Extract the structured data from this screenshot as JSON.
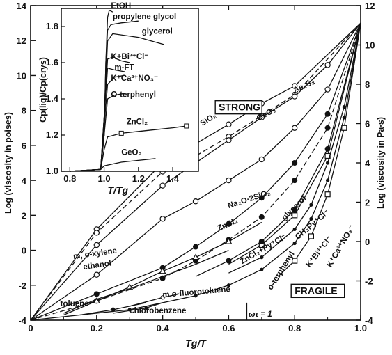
{
  "chart_data": [
    {
      "type": "line",
      "title": "",
      "xlabel": "Tg/T",
      "ylabel_left": "Log (viscosity in poises)",
      "ylabel_right": "Log (viscosity in Pa∙s)",
      "xlim": [
        0,
        1.0
      ],
      "ylim_left": [
        -4,
        14
      ],
      "ylim_right": [
        -4,
        12
      ],
      "x_ticks": [
        "0",
        "0.2",
        "0.4",
        "0.6",
        "0.8",
        "1.0"
      ],
      "y_ticks_left": [
        "-4",
        "-2",
        "0",
        "2",
        "4",
        "6",
        "8",
        "10",
        "12",
        "14"
      ],
      "y_ticks_right": [
        "-4",
        "-2",
        "0",
        "2",
        "4",
        "6",
        "8",
        "10",
        "12"
      ],
      "grid": false,
      "boxed_labels": [
        "STRONG",
        "FRAGILE"
      ],
      "annotations": {
        "omega_tau": "ωτ = 1"
      },
      "series": [
        {
          "name": "SiO2",
          "label": "SiO₂",
          "x": [
            0,
            0.2,
            0.4,
            0.5,
            0.6,
            0.7,
            0.8,
            1.0
          ],
          "y": [
            -4,
            1.2,
            5.0,
            6.1,
            7.2,
            8.4,
            9.4,
            13.0
          ]
        },
        {
          "name": "GeO2",
          "label": "GeO₂",
          "x": [
            0,
            0.2,
            0.4,
            0.5,
            0.6,
            0.7,
            0.8,
            1.0
          ],
          "y": [
            -4,
            1.0,
            4.5,
            5.4,
            6.5,
            7.7,
            8.9,
            13.0
          ]
        },
        {
          "name": "As2S3",
          "label": "As₂S₃",
          "x": [
            0,
            0.2,
            0.4,
            0.6,
            0.7,
            0.8,
            0.9,
            1.0
          ],
          "y": [
            -4,
            0.3,
            3.7,
            6.3,
            7.6,
            8.8,
            10.6,
            13.0
          ]
        },
        {
          "name": "Na2O-2SiO2",
          "label": "Na₂O·2SiO₂",
          "x": [
            0,
            0.2,
            0.4,
            0.5,
            0.6,
            0.7,
            0.8,
            0.9,
            1.0
          ],
          "y": [
            -4,
            -1.4,
            1.8,
            2.8,
            4.0,
            5.2,
            7.0,
            9.2,
            13.0
          ]
        },
        {
          "name": "ZnCl2",
          "label": "ZnCl₂",
          "x": [
            0,
            0.2,
            0.4,
            0.5,
            0.6,
            0.7,
            0.8,
            0.9,
            1.0
          ],
          "y": [
            -4,
            -2.5,
            -1.0,
            0.2,
            1.5,
            3.0,
            5.0,
            7.8,
            13.0
          ]
        },
        {
          "name": "glycerol",
          "label": "glycerol",
          "x": [
            0,
            0.2,
            0.4,
            0.5,
            0.6,
            0.7,
            0.8,
            0.9,
            1.0
          ],
          "y": [
            -4,
            -2.9,
            -1.6,
            -0.6,
            0.6,
            1.9,
            4.0,
            7.0,
            13.0
          ]
        },
        {
          "name": "m, o-xylene",
          "label": "m, o-xylene",
          "x": [
            0.1,
            0.2,
            0.3,
            0.4,
            0.5,
            0.6,
            0.7
          ],
          "y": [
            -3.7,
            -2.9,
            -2.1,
            -1.2,
            -0.4,
            0.5,
            1.6
          ]
        },
        {
          "name": "ethanol",
          "label": "ethanol",
          "x": [
            0.1,
            0.2,
            0.3,
            0.4,
            0.5,
            0.6
          ],
          "y": [
            -3.6,
            -2.8,
            -2.2,
            -1.5,
            -0.8,
            0.0
          ]
        },
        {
          "name": "CH3Py+Cl-",
          "label": "CH₃Py⁺Cl⁻",
          "x": [
            0.6,
            0.7,
            0.8,
            0.9,
            1.0
          ],
          "y": [
            -0.8,
            0.3,
            2.0,
            5.4,
            13.0
          ]
        },
        {
          "name": "ZnCl2+Py+Cl-",
          "label": "ZnCl₂+Py⁺Cl⁻",
          "x": [
            0.5,
            0.6,
            0.7,
            0.8,
            0.9,
            1.0
          ],
          "y": [
            -1.5,
            -0.6,
            0.5,
            2.3,
            5.8,
            13.0
          ]
        },
        {
          "name": "K+Bi3+Cl-",
          "label": "K⁺Bi³⁺Cl⁻",
          "x": [
            0.6,
            0.7,
            0.8,
            0.85,
            0.9,
            0.95,
            1.0
          ],
          "y": [
            -1.3,
            -0.4,
            1.2,
            2.6,
            5.0,
            8.2,
            13.0
          ]
        },
        {
          "name": "K+Ca2+NO3-",
          "label": "K⁺Ca²⁺NO₃⁻",
          "x": [
            0.75,
            0.8,
            0.85,
            0.9,
            0.95,
            1.0
          ],
          "y": [
            -1.5,
            -0.6,
            0.8,
            3.2,
            7.0,
            13.0
          ]
        },
        {
          "name": "o-terphenyl",
          "label": "o-terphenyl",
          "x": [
            0,
            0.3,
            0.5,
            0.6,
            0.7,
            0.8,
            0.85,
            0.9,
            0.95,
            1.0
          ],
          "y": [
            -4,
            -3.4,
            -2.6,
            -2.0,
            -1.1,
            0.4,
            1.8,
            4.0,
            7.6,
            13.0
          ]
        },
        {
          "name": "toluene",
          "label": "toluene",
          "x": [
            0.15,
            0.25,
            0.35
          ],
          "y": [
            -3.7,
            -3.4,
            -3.0
          ]
        },
        {
          "name": "m,o-fluorotoluene",
          "label": "m,o-fluorotoluene",
          "x": [
            0.3,
            0.4,
            0.45
          ],
          "y": [
            -3.2,
            -2.7,
            -2.5
          ]
        },
        {
          "name": "chlorobenzene",
          "label": "chlorobenzene",
          "x": [
            0.25,
            0.35,
            0.4
          ],
          "y": [
            -3.6,
            -3.3,
            -3.0
          ]
        }
      ]
    },
    {
      "type": "line",
      "title": "",
      "xlabel": "T/Tg",
      "ylabel": "Cp(liq)/Cp(crys)",
      "xlim": [
        0.75,
        1.55
      ],
      "ylim": [
        1.0,
        1.9
      ],
      "x_ticks": [
        "0.8",
        "1.0",
        "1.2",
        "1.4"
      ],
      "y_ticks": [
        "1.0",
        "1.2",
        "1.4",
        "1.6",
        "1.8"
      ],
      "series": [
        {
          "name": "EtOH",
          "label": "EtOH",
          "x": [
            0.8,
            0.98,
            1.0,
            1.01,
            1.02,
            1.03,
            1.05
          ],
          "y": [
            1.0,
            1.01,
            1.2,
            1.6,
            1.85,
            1.89,
            1.88
          ]
        },
        {
          "name": "propylene glycol",
          "label": "propylene glycol",
          "x": [
            0.8,
            0.98,
            1.0,
            1.01,
            1.02,
            1.04,
            1.1,
            1.2
          ],
          "y": [
            1.0,
            1.01,
            1.2,
            1.6,
            1.78,
            1.81,
            1.82,
            1.83
          ]
        },
        {
          "name": "glycerol",
          "label": "glycerol",
          "x": [
            0.8,
            0.98,
            1.0,
            1.02,
            1.05,
            1.2,
            1.35
          ],
          "y": [
            1.0,
            1.01,
            1.3,
            1.72,
            1.76,
            1.74,
            1.7
          ]
        },
        {
          "name": "K+Bi3+Cl-",
          "label": "K+Bi³⁺Cl⁻",
          "x": [
            0.8,
            0.98,
            1.0,
            1.02,
            1.05,
            1.1,
            1.15
          ],
          "y": [
            1.0,
            1.01,
            1.3,
            1.62,
            1.63,
            1.61,
            1.6
          ]
        },
        {
          "name": "m-FT",
          "label": "m-FT",
          "x": [
            0.8,
            0.98,
            1.0,
            1.02,
            1.06,
            1.12
          ],
          "y": [
            1.0,
            1.01,
            1.3,
            1.57,
            1.56,
            1.55
          ]
        },
        {
          "name": "K+Ca2+NO3-",
          "label": "K⁺Ca²⁺NO₃⁻",
          "x": [
            0.8,
            0.98,
            1.0,
            1.02,
            1.06,
            1.12
          ],
          "y": [
            1.0,
            1.01,
            1.25,
            1.48,
            1.52,
            1.53
          ]
        },
        {
          "name": "O-terphenyl",
          "label": "O-terphenyl",
          "x": [
            0.8,
            0.98,
            1.0,
            1.02,
            1.06,
            1.12
          ],
          "y": [
            1.0,
            1.01,
            1.2,
            1.4,
            1.42,
            1.43
          ]
        },
        {
          "name": "ZnCl2",
          "label": "ZnCl₂",
          "x": [
            0.8,
            0.98,
            1.0,
            1.02,
            1.1,
            1.2,
            1.3,
            1.4,
            1.48
          ],
          "y": [
            1.0,
            1.01,
            1.12,
            1.19,
            1.21,
            1.22,
            1.23,
            1.24,
            1.25
          ]
        },
        {
          "name": "GeO2",
          "label": "GeO₂",
          "x": [
            0.8,
            0.98,
            1.0,
            1.1,
            1.2,
            1.3
          ],
          "y": [
            1.0,
            1.01,
            1.03,
            1.05,
            1.06,
            1.07
          ]
        }
      ]
    }
  ]
}
